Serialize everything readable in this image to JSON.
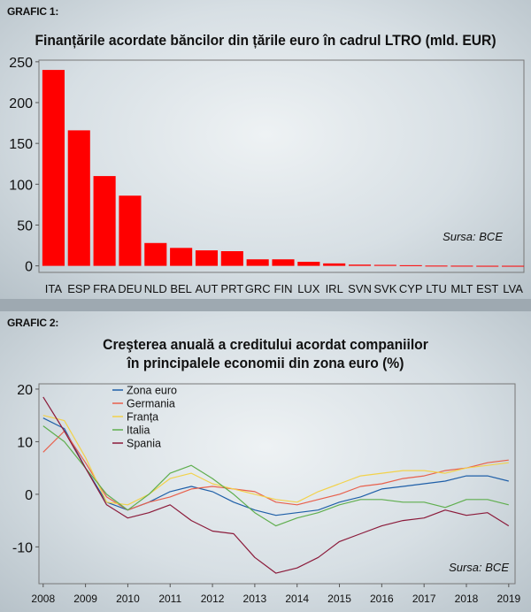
{
  "grafic1": {
    "tag": "GRAFIC 1:",
    "title": "Finanțările acordate băncilor din țările euro în cadrul LTRO (mld. EUR)",
    "source": "Sursa: BCE",
    "bar_color": "#ff0000"
  },
  "grafic2": {
    "tag": "GRAFIC 2:",
    "title_line1": "Creşterea anuală a creditului acordat companiilor",
    "title_line2": "în principalele economii din zona euro (%)",
    "source": "Sursa: BCE"
  },
  "chart_data": [
    {
      "type": "bar",
      "title": "Finanțările acordate băncilor din țările euro în cadrul LTRO (mld. EUR)",
      "categories": [
        "ITA",
        "ESP",
        "FRA",
        "DEU",
        "NLD",
        "BEL",
        "AUT",
        "PRT",
        "GRC",
        "FIN",
        "LUX",
        "IRL",
        "SVN",
        "SVK",
        "CYP",
        "LTU",
        "MLT",
        "EST",
        "LVA"
      ],
      "values": [
        240,
        166,
        110,
        86,
        28,
        22,
        19,
        18,
        8,
        8,
        5,
        3,
        1.5,
        1.2,
        0.8,
        0.3,
        0.2,
        0.1,
        0.1
      ],
      "yticks": [
        0,
        50,
        100,
        150,
        200,
        250
      ],
      "ylim": [
        -8,
        252
      ],
      "grid": false
    },
    {
      "type": "line",
      "title": "Creşterea anuală a creditului acordat companiilor în principalele economii din zona euro (%)",
      "xticks": [
        "2008",
        "2009",
        "2010",
        "2011",
        "2012",
        "2013",
        "2014",
        "2015",
        "2016",
        "2017",
        "2018",
        "2019"
      ],
      "yticks": [
        -10,
        0,
        10,
        20
      ],
      "xlim": [
        2007.9,
        2019.15
      ],
      "ylim": [
        -17,
        21
      ],
      "legend_position": "top-left",
      "series": [
        {
          "name": "Zona euro",
          "color": "#1f5fa8",
          "x": [
            2008,
            2008.5,
            2009,
            2009.5,
            2010,
            2010.5,
            2011,
            2011.5,
            2012,
            2012.5,
            2013,
            2013.5,
            2014,
            2014.5,
            2015,
            2015.5,
            2016,
            2016.5,
            2017,
            2017.5,
            2018,
            2018.5,
            2019
          ],
          "y": [
            14.5,
            12.5,
            5,
            -1.5,
            -3,
            -1.5,
            0.5,
            1.5,
            0.5,
            -1.5,
            -3,
            -4,
            -3.5,
            -3,
            -1.5,
            -0.5,
            1,
            1.5,
            2,
            2.5,
            3.5,
            3.5,
            2.5
          ]
        },
        {
          "name": "Germania",
          "color": "#e8604c",
          "x": [
            2008,
            2008.5,
            2009,
            2009.5,
            2010,
            2010.5,
            2011,
            2011.5,
            2012,
            2012.5,
            2013,
            2013.5,
            2014,
            2014.5,
            2015,
            2015.5,
            2016,
            2016.5,
            2017,
            2017.5,
            2018,
            2018.5,
            2019
          ],
          "y": [
            8,
            12,
            6,
            -0.5,
            -3,
            -1.5,
            -0.5,
            1,
            1.5,
            1,
            0.5,
            -1.5,
            -2,
            -1,
            0,
            1.5,
            2,
            3,
            3.5,
            4.5,
            5,
            6,
            6.5
          ]
        },
        {
          "name": "Franța",
          "color": "#f2d24b",
          "x": [
            2008,
            2008.5,
            2009,
            2009.5,
            2010,
            2010.5,
            2011,
            2011.5,
            2012,
            2012.5,
            2013,
            2013.5,
            2014,
            2014.5,
            2015,
            2015.5,
            2016,
            2016.5,
            2017,
            2017.5,
            2018,
            2018.5,
            2019
          ],
          "y": [
            15,
            14,
            7,
            -1.5,
            -2,
            0,
            3,
            4,
            2,
            1,
            0,
            -1,
            -1.5,
            0.5,
            2,
            3.5,
            4,
            4.5,
            4.5,
            4,
            5,
            5.5,
            6
          ]
        },
        {
          "name": "Italia",
          "color": "#5fae4e",
          "x": [
            2008,
            2008.5,
            2009,
            2009.5,
            2010,
            2010.5,
            2011,
            2011.5,
            2012,
            2012.5,
            2013,
            2013.5,
            2014,
            2014.5,
            2015,
            2015.5,
            2016,
            2016.5,
            2017,
            2017.5,
            2018,
            2018.5,
            2019
          ],
          "y": [
            13,
            10,
            5,
            0,
            -3,
            0,
            4,
            5.5,
            3,
            0,
            -3.5,
            -6,
            -4.5,
            -3.5,
            -2,
            -1,
            -1,
            -1.5,
            -1.5,
            -2.5,
            -1,
            -1,
            -2
          ]
        },
        {
          "name": "Spania",
          "color": "#8b1a3a",
          "x": [
            2008,
            2008.5,
            2009,
            2009.5,
            2010,
            2010.5,
            2011,
            2011.5,
            2012,
            2012.5,
            2013,
            2013.5,
            2014,
            2014.5,
            2015,
            2015.5,
            2016,
            2016.5,
            2017,
            2017.5,
            2018,
            2018.5,
            2019
          ],
          "y": [
            18.5,
            12,
            5,
            -2,
            -4.5,
            -3.5,
            -2,
            -5,
            -7,
            -7.5,
            -12,
            -15,
            -14,
            -12,
            -9,
            -7.5,
            -6,
            -5,
            -4.5,
            -3,
            -4,
            -3.5,
            -6
          ]
        }
      ]
    }
  ]
}
